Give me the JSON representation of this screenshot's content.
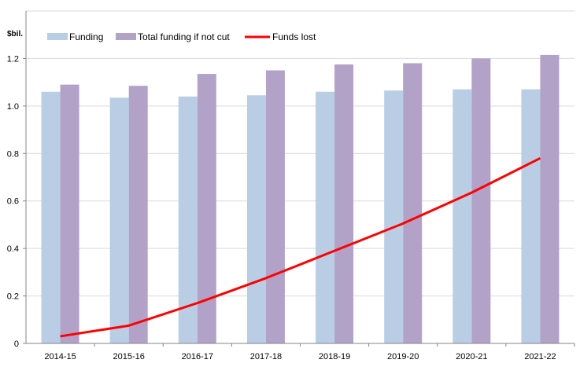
{
  "chart_data": {
    "type": "bar",
    "ylabel": "$bil.",
    "ylim": [
      0,
      1.4
    ],
    "yticks": [
      "0",
      "0.2",
      "0.4",
      "0.6",
      "0.8",
      "1.0",
      "1.2"
    ],
    "grid": true,
    "legend_position": "top-left",
    "categories": [
      "2014-15",
      "2015-16",
      "2016-17",
      "2017-18",
      "2018-19",
      "2019-20",
      "2020-21",
      "2021-22"
    ],
    "series": [
      {
        "name": "Funding",
        "type": "bar",
        "color": "#b9cde5",
        "values": [
          1.06,
          1.035,
          1.04,
          1.045,
          1.06,
          1.065,
          1.07,
          1.07
        ]
      },
      {
        "name": "Total funding if not cut",
        "type": "bar",
        "color": "#b3a2c7",
        "values": [
          1.09,
          1.085,
          1.135,
          1.15,
          1.175,
          1.18,
          1.2,
          1.215
        ]
      },
      {
        "name": "Funds lost",
        "type": "line",
        "color": "#ff0000",
        "values": [
          0.03,
          0.075,
          0.17,
          0.275,
          0.39,
          0.505,
          0.635,
          0.78
        ]
      }
    ]
  }
}
